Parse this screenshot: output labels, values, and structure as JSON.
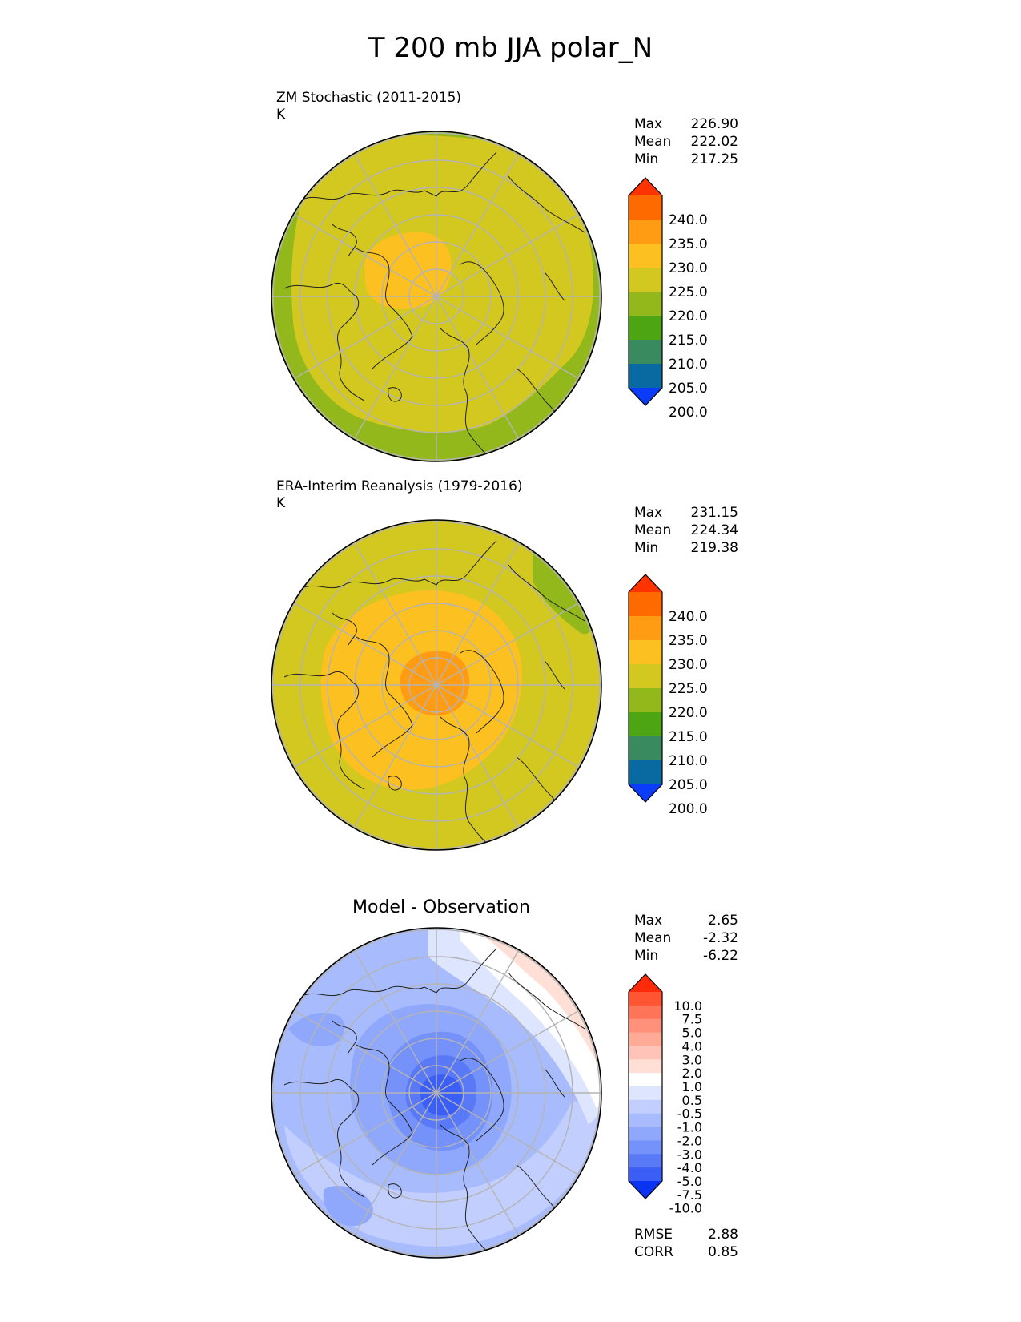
{
  "title": "T 200 mb JJA polar_N",
  "panels": [
    {
      "title": "ZM Stochastic (2011-2015)",
      "units": "K",
      "stats": {
        "max_label": "Max",
        "max": "226.90",
        "mean_label": "Mean",
        "mean": "222.02",
        "min_label": "Min",
        "min": "217.25"
      }
    },
    {
      "title": "ERA-Interim Reanalysis (1979-2016)",
      "units": "K",
      "stats": {
        "max_label": "Max",
        "max": "231.15",
        "mean_label": "Mean",
        "mean": "224.34",
        "min_label": "Min",
        "min": "219.38"
      }
    },
    {
      "title": "Model - Observation",
      "units": "",
      "stats": {
        "max_label": "Max",
        "max": "2.65",
        "mean_label": "Mean",
        "mean": "-2.32",
        "min_label": "Min",
        "min": "-6.22"
      }
    }
  ],
  "colorbar_abs": {
    "labels": [
      "240.0",
      "235.0",
      "230.0",
      "225.0",
      "220.0",
      "215.0",
      "210.0",
      "205.0",
      "200.0"
    ],
    "colors": [
      "#ff3300",
      "#ff6a00",
      "#ff9c14",
      "#fdc021",
      "#d3c81f",
      "#93b81c",
      "#4da513",
      "#3a8a5f",
      "#096aa1",
      "#0a3cfa"
    ]
  },
  "colorbar_diff": {
    "labels": [
      "10.0",
      "7.5",
      "5.0",
      "4.0",
      "3.0",
      "2.0",
      "1.0",
      "0.5",
      "-0.5",
      "-1.0",
      "-2.0",
      "-3.0",
      "-4.0",
      "-5.0",
      "-7.5",
      "-10.0"
    ],
    "colors": [
      "#ff2a0a",
      "#ff5533",
      "#ff7559",
      "#ff917a",
      "#ffab98",
      "#ffc4b7",
      "#ffdfd6",
      "#ffffff",
      "#dde5ff",
      "#c2cffe",
      "#a8bcfd",
      "#8fa8fb",
      "#7592fa",
      "#5a79f7",
      "#3b5ef6",
      "#0b33f4"
    ]
  },
  "footer": {
    "rmse_label": "RMSE",
    "rmse": "2.88",
    "corr_label": "CORR",
    "corr": "0.85"
  }
}
